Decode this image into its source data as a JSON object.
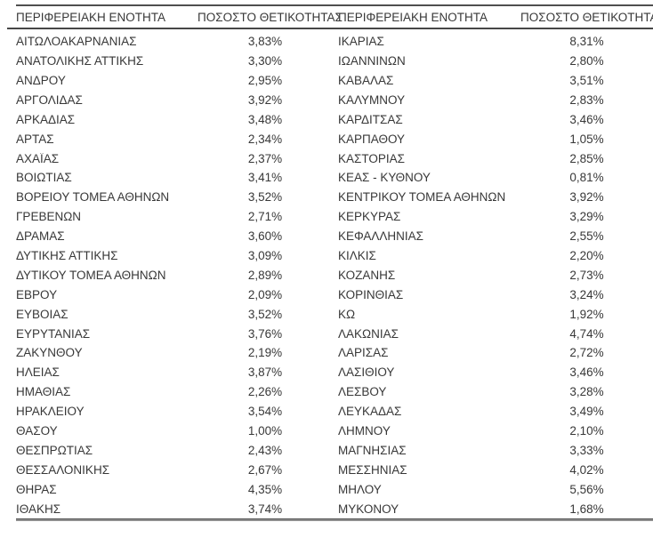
{
  "table": {
    "header": {
      "region": "ΠΕΡΙΦΕΡΕΙΑΚΗ ΕΝΟΤΗΤΑ",
      "positivity": "ΠΟΣΟΣΤΟ ΘΕΤΙΚΟΤΗΤΑΣ"
    },
    "left_rows": [
      {
        "region": "ΑΙΤΩΛΟΑΚΑΡΝΑΝΙΑΣ",
        "value": "3,83%"
      },
      {
        "region": "ΑΝΑΤΟΛΙΚΗΣ ΑΤΤΙΚΗΣ",
        "value": "3,30%"
      },
      {
        "region": "ΑΝΔΡΟΥ",
        "value": "2,95%"
      },
      {
        "region": "ΑΡΓΟΛΙΔΑΣ",
        "value": "3,92%"
      },
      {
        "region": "ΑΡΚΑΔΙΑΣ",
        "value": "3,48%"
      },
      {
        "region": "ΑΡΤΑΣ",
        "value": "2,34%"
      },
      {
        "region": "ΑΧΑΪΑΣ",
        "value": "2,37%"
      },
      {
        "region": "ΒΟΙΩΤΙΑΣ",
        "value": "3,41%"
      },
      {
        "region": "ΒΟΡΕΙΟΥ ΤΟΜΕΑ ΑΘΗΝΩΝ",
        "value": "3,52%"
      },
      {
        "region": "ΓΡΕΒΕΝΩΝ",
        "value": "2,71%"
      },
      {
        "region": "ΔΡΑΜΑΣ",
        "value": "3,60%"
      },
      {
        "region": "ΔΥΤΙΚΗΣ ΑΤΤΙΚΗΣ",
        "value": "3,09%"
      },
      {
        "region": "ΔΥΤΙΚΟΥ ΤΟΜΕΑ ΑΘΗΝΩΝ",
        "value": "2,89%"
      },
      {
        "region": "ΕΒΡΟΥ",
        "value": "2,09%"
      },
      {
        "region": "ΕΥΒΟΙΑΣ",
        "value": "3,52%"
      },
      {
        "region": "ΕΥΡΥΤΑΝΙΑΣ",
        "value": "3,76%"
      },
      {
        "region": "ΖΑΚΥΝΘΟΥ",
        "value": "2,19%"
      },
      {
        "region": "ΗΛΕΙΑΣ",
        "value": "3,87%"
      },
      {
        "region": "ΗΜΑΘΙΑΣ",
        "value": "2,26%"
      },
      {
        "region": "ΗΡΑΚΛΕΙΟΥ",
        "value": "3,54%"
      },
      {
        "region": "ΘΑΣΟΥ",
        "value": "1,00%"
      },
      {
        "region": "ΘΕΣΠΡΩΤΙΑΣ",
        "value": "2,43%"
      },
      {
        "region": "ΘΕΣΣΑΛΟΝΙΚΗΣ",
        "value": "2,67%"
      },
      {
        "region": "ΘΗΡΑΣ",
        "value": "4,35%"
      },
      {
        "region": "ΙΘΑΚΗΣ",
        "value": "3,74%"
      }
    ],
    "right_rows": [
      {
        "region": "ΙΚΑΡΙΑΣ",
        "value": "8,31%"
      },
      {
        "region": "ΙΩΑΝΝΙΝΩΝ",
        "value": "2,80%"
      },
      {
        "region": "ΚΑΒΑΛΑΣ",
        "value": "3,51%"
      },
      {
        "region": "ΚΑΛΥΜΝΟΥ",
        "value": "2,83%"
      },
      {
        "region": "ΚΑΡΔΙΤΣΑΣ",
        "value": "3,46%"
      },
      {
        "region": "ΚΑΡΠΑΘΟΥ",
        "value": "1,05%"
      },
      {
        "region": "ΚΑΣΤΟΡΙΑΣ",
        "value": "2,85%"
      },
      {
        "region": "ΚΕΑΣ - ΚΥΘΝΟΥ",
        "value": "0,81%"
      },
      {
        "region": "ΚΕΝΤΡΙΚΟΥ ΤΟΜΕΑ ΑΘΗΝΩΝ",
        "value": "3,92%"
      },
      {
        "region": "ΚΕΡΚΥΡΑΣ",
        "value": "3,29%"
      },
      {
        "region": "ΚΕΦΑΛΛΗΝΙΑΣ",
        "value": "2,55%"
      },
      {
        "region": "ΚΙΛΚΙΣ",
        "value": "2,20%"
      },
      {
        "region": "ΚΟΖΑΝΗΣ",
        "value": "2,73%"
      },
      {
        "region": "ΚΟΡΙΝΘΙΑΣ",
        "value": "3,24%"
      },
      {
        "region": "ΚΩ",
        "value": "1,92%"
      },
      {
        "region": "ΛΑΚΩΝΙΑΣ",
        "value": "4,74%"
      },
      {
        "region": "ΛΑΡΙΣΑΣ",
        "value": "2,72%"
      },
      {
        "region": "ΛΑΣΙΘΙΟΥ",
        "value": "3,46%"
      },
      {
        "region": "ΛΕΣΒΟΥ",
        "value": "3,28%"
      },
      {
        "region": "ΛΕΥΚΑΔΑΣ",
        "value": "3,49%"
      },
      {
        "region": "ΛΗΜΝΟΥ",
        "value": "2,10%"
      },
      {
        "region": "ΜΑΓΝΗΣΙΑΣ",
        "value": "3,33%"
      },
      {
        "region": "ΜΕΣΣΗΝΙΑΣ",
        "value": "4,02%"
      },
      {
        "region": "ΜΗΛΟΥ",
        "value": "5,56%"
      },
      {
        "region": "ΜΥΚΟΝΟΥ",
        "value": "1,68%"
      }
    ]
  },
  "colors": {
    "text": "#383838",
    "rule_dark": "#4f4f4f",
    "rule_bottom": "#8f8f8f"
  }
}
